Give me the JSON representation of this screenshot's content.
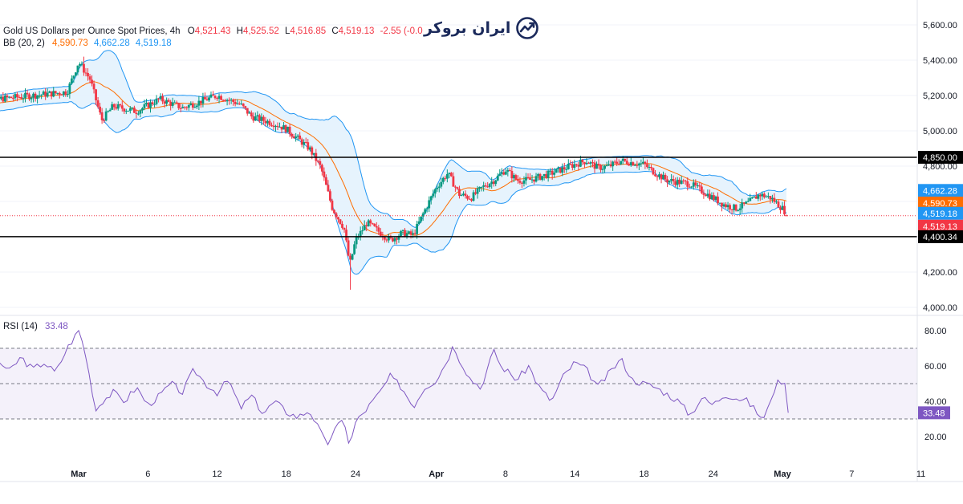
{
  "header": {
    "symbol_title": "Gold US Dollars per Ounce Spot Prices, 4h",
    "ohlc": {
      "o_label": "O",
      "o_value": "4,521.43",
      "h_label": "H",
      "h_value": "4,525.52",
      "l_label": "L",
      "l_value": "4,516.85",
      "c_label": "C",
      "c_value": "4,519.13",
      "change": "-2.55 (-0.0"
    },
    "bb_label": "BB (20, 2)",
    "bb_values": [
      "4,590.73",
      "4,662.28",
      "4,519.18"
    ],
    "rsi_label": "RSI (14)",
    "rsi_value": "33.48"
  },
  "logo": {
    "text": "ایران بروکر",
    "icon": "chart-growth-icon"
  },
  "colors": {
    "candle_up": "#089981",
    "candle_down": "#f23645",
    "bb_basis": "#ff6d00",
    "bb_band": "#2196f3",
    "bb_fill": "#e3f2fd",
    "rsi_line": "#7e57c2",
    "rsi_fill": "#ede7f6",
    "hline": "#000000",
    "price_label_dark": "#000000",
    "bb_label_orange": "#ff6d00",
    "bb_label_blue": "#2196f3",
    "price_label_red": "#f23645",
    "rsi_label": "#7e57c2"
  },
  "chart_data": [
    {
      "type": "candlestick",
      "title": "Gold US Dollars per Ounce Spot Prices, 4h",
      "price_axis": {
        "ticks": [
          4000,
          4200,
          4400,
          4600,
          4800,
          5000,
          5200,
          5400,
          5600
        ],
        "tick_labels": [
          "4,000.00",
          "4,200.00",
          "4,400.00",
          "4,600.00",
          "4,800.00",
          "5,000.00",
          "5,200.00",
          "5,400.00",
          "5,600.00"
        ],
        "ylim": [
          3960,
          5650
        ]
      },
      "x_axis": {
        "start_day": 20,
        "end_day": 93,
        "tick_days": [
          29,
          35,
          41,
          47,
          53,
          60,
          66,
          72,
          78,
          84,
          90,
          96,
          102
        ],
        "tick_labels": [
          "Mar",
          "6",
          "12",
          "18",
          "24",
          "Apr",
          "8",
          "14",
          "18",
          "24",
          "May",
          "7",
          "11"
        ]
      },
      "close_points": {
        "day": [
          20,
          22,
          25,
          28,
          29,
          30,
          31,
          32,
          34,
          36,
          38,
          41,
          43,
          44,
          46,
          47,
          49,
          50,
          51,
          52,
          52.5,
          53,
          54,
          56,
          57,
          58,
          59,
          60,
          61,
          62,
          63,
          64,
          65,
          66,
          67,
          68,
          70,
          72,
          73,
          74,
          75,
          76,
          78,
          79,
          80,
          82,
          84,
          85,
          86,
          87,
          88,
          89,
          90,
          90.5
        ],
        "close": [
          5140,
          5180,
          5200,
          5220,
          5390,
          5290,
          5060,
          5140,
          5110,
          5180,
          5130,
          5200,
          5150,
          5080,
          5040,
          5010,
          4900,
          4790,
          4560,
          4450,
          4240,
          4380,
          4480,
          4380,
          4420,
          4410,
          4550,
          4680,
          4760,
          4640,
          4620,
          4680,
          4720,
          4780,
          4720,
          4720,
          4760,
          4810,
          4830,
          4790,
          4800,
          4830,
          4810,
          4760,
          4720,
          4700,
          4620,
          4580,
          4560,
          4590,
          4640,
          4620,
          4560,
          4519.13
        ]
      },
      "series": [
        {
          "name": "BB basis",
          "value_label": "4,590.73"
        },
        {
          "name": "BB upper",
          "value_label": "4,662.28"
        },
        {
          "name": "BB lower",
          "value_label": "4,519.18"
        }
      ],
      "horizontal_lines": [
        {
          "value": 4850.0,
          "label": "4,850.00"
        },
        {
          "value": 4400.34,
          "label": "4,400.34"
        }
      ],
      "current_price": {
        "value": 4519.13,
        "label": "4,519.13"
      },
      "extremes": {
        "high": 5420,
        "low": 4100
      }
    },
    {
      "type": "line",
      "title": "RSI (14)",
      "y_axis": {
        "ticks": [
          20,
          40,
          60,
          80
        ],
        "tick_labels": [
          "20.00",
          "40.00",
          "60.00",
          "80.00"
        ],
        "ylim": [
          4,
          88
        ]
      },
      "levels": [
        70,
        50,
        30
      ],
      "current": {
        "value": 33.48,
        "label": "33.48"
      },
      "points": {
        "day": [
          20,
          21,
          22,
          23,
          24,
          25,
          26,
          27,
          28,
          29,
          29.5,
          30,
          30.5,
          31,
          32,
          33,
          34,
          35,
          36,
          37,
          38,
          39,
          40,
          41,
          42,
          43,
          44,
          45,
          46,
          47,
          48,
          49,
          50,
          50.5,
          51,
          52,
          52.5,
          53,
          54,
          55,
          56,
          57,
          58,
          59,
          60,
          61,
          61.5,
          62,
          63,
          64,
          65,
          65.5,
          66,
          67,
          68,
          69,
          70,
          71,
          72,
          73,
          74,
          75,
          76,
          77,
          78,
          79,
          80,
          81,
          82,
          83,
          84,
          85,
          86,
          87,
          88,
          88.5,
          89,
          89.5,
          90,
          90.5
        ],
        "value": [
          70,
          74,
          63,
          57,
          65,
          58,
          62,
          56,
          70,
          80,
          70,
          52,
          35,
          40,
          45,
          40,
          48,
          38,
          43,
          50,
          45,
          58,
          50,
          45,
          52,
          36,
          43,
          33,
          40,
          34,
          31,
          35,
          22,
          15,
          22,
          30,
          14,
          28,
          36,
          44,
          54,
          48,
          37,
          48,
          52,
          64,
          72,
          64,
          52,
          48,
          70,
          60,
          58,
          52,
          60,
          47,
          40,
          54,
          62,
          58,
          48,
          56,
          64,
          52,
          50,
          48,
          44,
          40,
          32,
          42,
          38,
          44,
          42,
          40,
          32,
          30,
          42,
          50,
          52,
          45,
          44,
          52,
          48,
          42,
          33.48
        ]
      }
    }
  ]
}
